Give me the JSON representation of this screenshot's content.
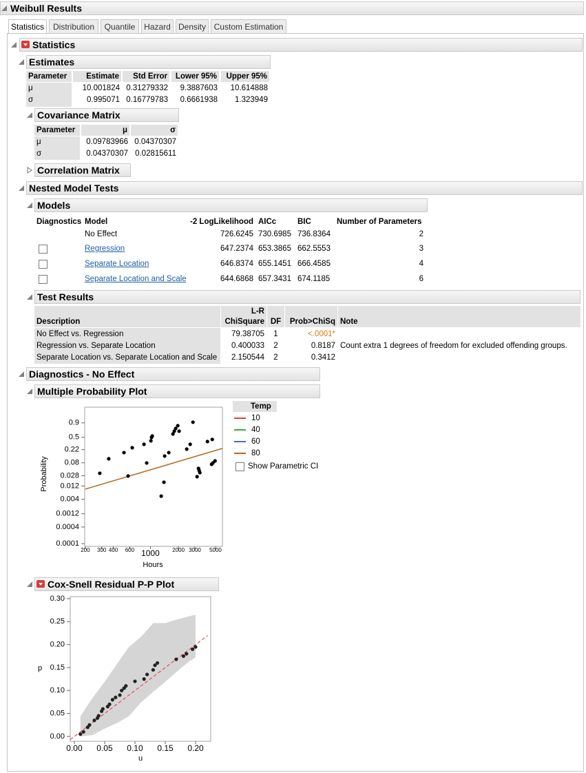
{
  "title": "Weibull Results",
  "tabs": [
    "Statistics",
    "Distribution",
    "Quantile",
    "Hazard",
    "Density",
    "Custom Estimation"
  ],
  "selected_tab": 0,
  "statistics": {
    "title": "Statistics",
    "estimates": {
      "title": "Estimates",
      "columns": [
        "Parameter",
        "Estimate",
        "Std Error",
        "Lower 95%",
        "Upper 95%"
      ],
      "rows": [
        [
          "μ",
          "10.001824",
          "0.31279332",
          "9.3887603",
          "10.614888"
        ],
        [
          "σ",
          "0.995071",
          "0.16779783",
          "0.6661938",
          "1.323949"
        ]
      ]
    },
    "covariance_matrix": {
      "title": "Covariance Matrix",
      "columns": [
        "Parameter",
        "μ",
        "σ"
      ],
      "rows": [
        [
          "μ",
          "0.09783966",
          "0.04370307"
        ],
        [
          "σ",
          "0.04370307",
          "0.02815611"
        ]
      ]
    },
    "correlation_matrix": {
      "title": "Correlation Matrix"
    }
  },
  "nested_model_tests": {
    "title": "Nested Model Tests",
    "models": {
      "title": "Models",
      "columns": [
        "Diagnostics",
        "Model",
        "-2 LogLikelihood",
        "AICc",
        "BIC",
        "Number of Parameters"
      ],
      "rows": [
        [
          "No Effect",
          "726.6245",
          "730.6985",
          "736.8364",
          "2"
        ],
        [
          "Regression",
          "647.2374",
          "653.3865",
          "662.5553",
          "3"
        ],
        [
          "Separate Location",
          "646.8374",
          "655.1451",
          "666.4585",
          "4"
        ],
        [
          "Separate Location and Scale",
          "644.6868",
          "657.3431",
          "674.1185",
          "6"
        ]
      ]
    },
    "test_results": {
      "title": "Test Results",
      "columns": [
        "Description",
        "L-R\nChiSquare",
        "DF",
        "Prob>ChiSq",
        "Note"
      ],
      "rows": [
        {
          "description": "No Effect vs. Regression",
          "chisquare": "79.38705",
          "df": "1",
          "prob": "<.0001*",
          "prob_color": "#e0780f"
        },
        {
          "description": "Regression vs. Separate Location",
          "chisquare": "0.400033",
          "df": "2",
          "prob": "0.8187",
          "note": "Count extra 1 degrees of freedom for excluded offending groups."
        },
        {
          "description": "Separate Location vs. Separate Location and Scale",
          "chisquare": "2.150544",
          "df": "2",
          "prob": "0.3412"
        }
      ]
    }
  },
  "diagnostics": {
    "title": "Diagnostics - No Effect"
  },
  "chart_data": [
    {
      "type": "scatter",
      "title": "Multiple Probability Plot",
      "x_label": "Hours",
      "y_label": "Probability",
      "x_scale": "log",
      "y_scale": "weibull",
      "xlim": [
        197,
        5930
      ],
      "ylim": [
        8e-05,
        0.9998
      ],
      "xticks": [
        200,
        300,
        400,
        600,
        1000,
        2000,
        3000,
        5000
      ],
      "yticks": [
        0.9,
        0.5,
        0.22,
        0.08,
        0.028,
        0.012,
        0.004,
        0.0012,
        0.0004,
        0.0001
      ],
      "point_color": "#000000",
      "x": [
        286,
        357,
        520,
        576,
        638,
        853,
        912,
        1012,
        1028,
        1047,
        1306,
        1397,
        1422,
        1575,
        1746,
        1806,
        1868,
        1968,
        2034,
        2454,
        2673,
        2863,
        3170,
        3282,
        3336,
        3396,
        4095,
        4537,
        4614,
        4690,
        4943
      ],
      "values": [
        0.0343,
        0.11,
        0.177,
        0.0274,
        0.253,
        0.322,
        0.079,
        0.404,
        0.498,
        0.539,
        0.0052,
        0.0164,
        0.136,
        0.177,
        0.601,
        0.686,
        0.767,
        0.84,
        0.686,
        0.229,
        0.322,
        0.913,
        0.0259,
        0.051,
        0.043,
        0.036,
        0.387,
        0.071,
        0.441,
        0.079,
        0.093
      ],
      "legend": {
        "title": "Temp",
        "position": "right"
      },
      "series": [
        {
          "name": "10",
          "color": "#e0403f"
        },
        {
          "name": "40",
          "color": "#3daa3d"
        },
        {
          "name": "60",
          "color": "#3c6fcf"
        },
        {
          "name": "80",
          "color": "#b7661c",
          "fit_line": {
            "x": [
              200,
              5930
            ],
            "values": [
              0.0093,
              0.241
            ]
          }
        }
      ],
      "checkbox_label": "Show Parametric CI"
    },
    {
      "type": "scatter",
      "title": "Cox-Snell Residual P-P Plot",
      "x_label": "u",
      "y_label": "p",
      "xlim": [
        -0.0068,
        0.225
      ],
      "ylim": [
        -0.0106,
        0.3045
      ],
      "xticks": [
        {
          "value": 0,
          "label": "0.00"
        },
        {
          "value": 0.05,
          "label": "0.05"
        },
        {
          "value": 0.1,
          "label": "0.10"
        },
        {
          "value": 0.15,
          "label": "0.15"
        },
        {
          "value": 0.2,
          "label": "0.20"
        }
      ],
      "yticks": [
        {
          "value": 0,
          "label": "0.00"
        },
        {
          "value": 0.05,
          "label": "0.05"
        },
        {
          "value": 0.1,
          "label": "0.10"
        },
        {
          "value": 0.15,
          "label": "0.15"
        },
        {
          "value": 0.2,
          "label": "0.20"
        },
        {
          "value": 0.25,
          "label": "0.25"
        },
        {
          "value": 0.3,
          "label": "0.30"
        }
      ],
      "point_color": "#222222",
      "x": [
        0.01,
        0.015,
        0.022,
        0.025,
        0.033,
        0.038,
        0.04,
        0.045,
        0.047,
        0.055,
        0.058,
        0.063,
        0.068,
        0.075,
        0.078,
        0.082,
        0.085,
        0.1,
        0.115,
        0.12,
        0.13,
        0.133,
        0.137,
        0.168,
        0.18,
        0.185,
        0.195,
        0.2
      ],
      "values": [
        0.005,
        0.01,
        0.02,
        0.025,
        0.035,
        0.04,
        0.045,
        0.055,
        0.06,
        0.065,
        0.07,
        0.08,
        0.085,
        0.09,
        0.1,
        0.105,
        0.11,
        0.12,
        0.125,
        0.135,
        0.145,
        0.155,
        0.16,
        0.168,
        0.175,
        0.18,
        0.19,
        0.195
      ],
      "band": {
        "color": "#d5d5d5",
        "x": [
          0.01,
          0.03,
          0.05,
          0.07,
          0.09,
          0.11,
          0.13,
          0.15,
          0.17,
          0.19,
          0.2
        ],
        "lower": [
          0,
          0.003,
          0.017,
          0.029,
          0.044,
          0.074,
          0.097,
          0.119,
          0.142,
          0.164,
          0.172
        ],
        "upper": [
          0.044,
          0.084,
          0.119,
          0.157,
          0.195,
          0.217,
          0.247,
          0.247,
          0.255,
          0.262,
          0.265
        ]
      },
      "reference_line": {
        "color": "#e05050",
        "x": [
          -0.0068,
          0.22
        ],
        "values": [
          -0.0068,
          0.22
        ]
      }
    }
  ]
}
